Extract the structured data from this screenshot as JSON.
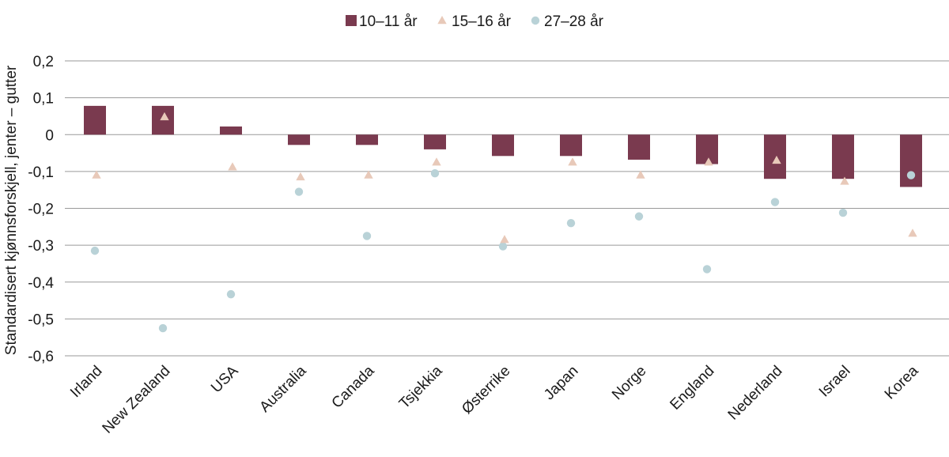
{
  "chart_data": {
    "type": "bar",
    "title": "",
    "xlabel": "",
    "ylabel": "Standardisert kjønnsforskjell, jenter – gutter",
    "ylim": [
      -0.6,
      0.2
    ],
    "yticks": [
      0.2,
      0.1,
      0,
      -0.1,
      -0.2,
      -0.3,
      -0.4,
      -0.5,
      -0.6
    ],
    "ytick_labels": [
      "0,2",
      "0,1",
      "0",
      "-0,1",
      "-0,2",
      "-0,3",
      "-0,4",
      "-0,5",
      "-0,6"
    ],
    "grid": true,
    "legend_position": "top-center",
    "categories": [
      "Irland",
      "New Zealand",
      "USA",
      "Australia",
      "Canada",
      "Tsjekkia",
      "Østerrike",
      "Japan",
      "Norge",
      "England",
      "Nederland",
      "Israel",
      "Korea"
    ],
    "series": [
      {
        "name": "10–11 år",
        "kind": "bar",
        "color": "#7a3a4f",
        "values": [
          0.078,
          0.078,
          0.022,
          -0.028,
          -0.028,
          -0.04,
          -0.058,
          -0.058,
          -0.068,
          -0.08,
          -0.12,
          -0.12,
          -0.142
        ]
      },
      {
        "name": "15–16 år",
        "kind": "triangle",
        "color": "#e8c9b9",
        "values": [
          -0.11,
          0.048,
          -0.088,
          -0.115,
          -0.11,
          -0.075,
          -0.285,
          -0.075,
          -0.11,
          -0.075,
          -0.07,
          -0.127,
          -0.268
        ]
      },
      {
        "name": "27–28 år",
        "kind": "circle",
        "color": "#b9d2d7",
        "values": [
          -0.315,
          -0.525,
          -0.433,
          -0.155,
          -0.275,
          -0.105,
          -0.303,
          -0.24,
          -0.222,
          -0.365,
          -0.183,
          -0.212,
          -0.11
        ]
      }
    ]
  }
}
